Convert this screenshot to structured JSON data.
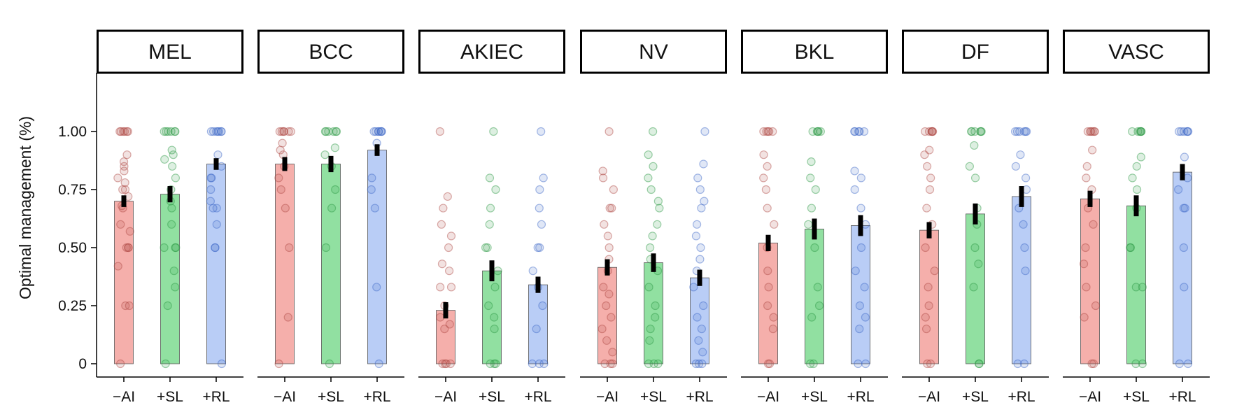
{
  "chart_data": {
    "type": "bar",
    "ylabel": "Optimal management (%)",
    "ylim": [
      0,
      1.2
    ],
    "yticks": [
      0,
      0.25,
      0.5,
      0.75,
      1.0
    ],
    "ytick_labels": [
      "0",
      "0.25",
      "0.50",
      "0.75",
      "1.00"
    ],
    "categories": [
      "−AI",
      "+SL",
      "+RL"
    ],
    "colors": {
      "−AI": "#f4a8a4",
      "+SL": "#88dd99",
      "+RL": "#b3c9f5"
    },
    "point_colors": {
      "−AI": "#b04a44",
      "+SL": "#2d9a45",
      "+RL": "#3f68c7"
    },
    "facets": [
      {
        "name": "MEL",
        "values": [
          0.7,
          0.73,
          0.86
        ],
        "errors": [
          0.025,
          0.035,
          0.025
        ],
        "points": [
          [
            1,
            1,
            1,
            1,
            1,
            1,
            0.9,
            0.87,
            0.85,
            0.83,
            0.8,
            0.78,
            0.75,
            0.75,
            0.72,
            0.68,
            0.67,
            0.6,
            0.57,
            0.5,
            0.5,
            0.5,
            0.42,
            0.25,
            0.25,
            0
          ],
          [
            1,
            1,
            1,
            1,
            1,
            1,
            0.92,
            0.9,
            0.88,
            0.85,
            0.8,
            0.75,
            0.7,
            0.67,
            0.6,
            0.5,
            0.5,
            0.5,
            0.4,
            0.33,
            0.25,
            0
          ],
          [
            1,
            1,
            1,
            1,
            1,
            1,
            1,
            0.9,
            0.85,
            0.8,
            0.8,
            0.75,
            0.7,
            0.67,
            0.67,
            0.6,
            0.5,
            0.5,
            0
          ]
        ]
      },
      {
        "name": "BCC",
        "values": [
          0.86,
          0.86,
          0.92
        ],
        "errors": [
          0.03,
          0.035,
          0.025
        ],
        "points": [
          [
            1,
            1,
            1,
            1,
            1,
            1,
            0.95,
            0.92,
            0.9,
            0.85,
            0.8,
            0.75,
            0.67,
            0.5,
            0.2,
            0
          ],
          [
            1,
            1,
            1,
            1,
            1,
            1,
            0.93,
            0.9,
            0.85,
            0.75,
            0.67,
            0.5,
            0
          ],
          [
            1,
            1,
            1,
            1,
            1,
            1,
            1,
            0.95,
            0.8,
            0.75,
            0.67,
            0.33,
            0
          ]
        ]
      },
      {
        "name": "AKIEC",
        "values": [
          0.23,
          0.4,
          0.34
        ],
        "errors": [
          0.035,
          0.045,
          0.035
        ],
        "points": [
          [
            1,
            0.72,
            0.67,
            0.6,
            0.55,
            0.5,
            0.43,
            0.4,
            0.33,
            0.33,
            0.25,
            0.2,
            0.17,
            0.15,
            0,
            0,
            0,
            0
          ],
          [
            1,
            0.8,
            0.75,
            0.67,
            0.6,
            0.5,
            0.5,
            0.4,
            0.33,
            0.25,
            0.2,
            0.15,
            0,
            0,
            0
          ],
          [
            1,
            0.8,
            0.75,
            0.67,
            0.6,
            0.5,
            0.5,
            0.4,
            0.33,
            0.25,
            0.15,
            0,
            0,
            0
          ]
        ]
      },
      {
        "name": "NV",
        "values": [
          0.415,
          0.435,
          0.37
        ],
        "errors": [
          0.035,
          0.04,
          0.035
        ],
        "points": [
          [
            1,
            0.83,
            0.8,
            0.75,
            0.67,
            0.67,
            0.6,
            0.55,
            0.5,
            0.45,
            0.4,
            0.33,
            0.3,
            0.25,
            0.2,
            0.15,
            0.1,
            0.05,
            0,
            0,
            0
          ],
          [
            1,
            0.9,
            0.85,
            0.8,
            0.75,
            0.7,
            0.67,
            0.6,
            0.55,
            0.5,
            0.45,
            0.4,
            0.33,
            0.25,
            0.2,
            0.15,
            0.1,
            0,
            0,
            0
          ],
          [
            1,
            0.86,
            0.8,
            0.75,
            0.7,
            0.67,
            0.6,
            0.55,
            0.5,
            0.45,
            0.4,
            0.33,
            0.25,
            0.2,
            0.15,
            0.1,
            0.05,
            0,
            0,
            0
          ]
        ]
      },
      {
        "name": "BKL",
        "values": [
          0.52,
          0.58,
          0.595
        ],
        "errors": [
          0.035,
          0.045,
          0.045
        ],
        "points": [
          [
            1,
            1,
            1,
            1,
            1,
            0.9,
            0.85,
            0.8,
            0.75,
            0.67,
            0.6,
            0.5,
            0.4,
            0.33,
            0.25,
            0.2,
            0.15,
            0,
            0
          ],
          [
            1,
            1,
            1,
            1,
            1,
            0.87,
            0.8,
            0.75,
            0.67,
            0.6,
            0.5,
            0.33,
            0.25,
            0.2,
            0,
            0
          ],
          [
            1,
            1,
            1,
            1,
            1,
            0.83,
            0.8,
            0.75,
            0.67,
            0.6,
            0.5,
            0.4,
            0.33,
            0.25,
            0.2,
            0.15,
            0,
            0
          ]
        ]
      },
      {
        "name": "DF",
        "values": [
          0.575,
          0.645,
          0.72
        ],
        "errors": [
          0.035,
          0.045,
          0.045
        ],
        "points": [
          [
            1,
            1,
            1,
            1,
            1,
            1,
            0.92,
            0.9,
            0.85,
            0.8,
            0.75,
            0.67,
            0.6,
            0.5,
            0.4,
            0.33,
            0.25,
            0.2,
            0.15,
            0,
            0
          ],
          [
            1,
            1,
            1,
            1,
            1,
            1,
            0.94,
            0.85,
            0.8,
            0.67,
            0.6,
            0.5,
            0.43,
            0.33,
            0,
            0
          ],
          [
            1,
            1,
            1,
            1,
            1,
            1,
            0.9,
            0.85,
            0.8,
            0.75,
            0.67,
            0.6,
            0.5,
            0.4,
            0,
            0
          ]
        ]
      },
      {
        "name": "VASC",
        "values": [
          0.71,
          0.68,
          0.825
        ],
        "errors": [
          0.035,
          0.045,
          0.035
        ],
        "points": [
          [
            1,
            1,
            1,
            1,
            1,
            1,
            0.92,
            0.85,
            0.8,
            0.75,
            0.67,
            0.6,
            0.5,
            0.43,
            0.33,
            0.25,
            0.2,
            0,
            0
          ],
          [
            1,
            1,
            1,
            1,
            1,
            1,
            0.89,
            0.85,
            0.8,
            0.75,
            0.67,
            0.5,
            0.5,
            0.33,
            0.33,
            0,
            0
          ],
          [
            1,
            1,
            1,
            1,
            1,
            1,
            0.89,
            0.8,
            0.75,
            0.67,
            0.67,
            0.5,
            0.33,
            0,
            0
          ]
        ]
      }
    ]
  }
}
